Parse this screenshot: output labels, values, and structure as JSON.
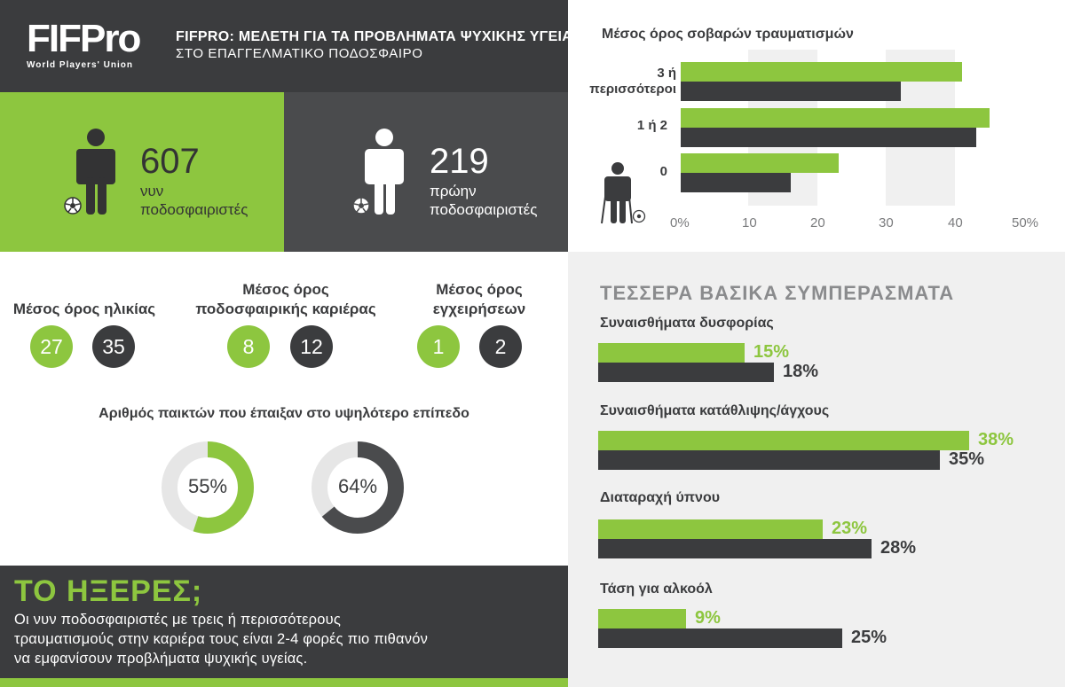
{
  "header": {
    "logo": "FIFPro",
    "logo_tagline": "World Players' Union",
    "title": "FIFPRO: ΜΕΛΕΤΗ ΓΙΑ ΤΑ ΠΡΟΒΛΗΜΑΤΑ ΨΥΧΙΚΗΣ ΥΓΕΙΑΣ",
    "subtitle": "ΣΤΟ ΕΠΑΓΓΕΛΜΑΤΙΚΟ ΠΟΔΟΣΦΑΙΡΟ"
  },
  "players": {
    "current": {
      "count": "607",
      "label1": "νυν",
      "label2": "ποδοσφαιριστές"
    },
    "former": {
      "count": "219",
      "label1": "πρώην",
      "label2": "ποδοσφαιριστές"
    }
  },
  "averages": {
    "age": {
      "title": "Μέσος όρος ηλικίας",
      "current": "27",
      "former": "35"
    },
    "career": {
      "title1": "Μέσος όρος",
      "title2": "ποδοσφαιρικής καριέρας",
      "current": "8",
      "former": "12"
    },
    "surgeries": {
      "title1": "Μέσος όρος",
      "title2": "εγχειρήσεων",
      "current": "1",
      "former": "2"
    }
  },
  "top_level": {
    "title": "Αριθμός παικτών που έπαιξαν στο υψηλότερο επίπεδο",
    "current_label": "55%",
    "former_label": "64%"
  },
  "did_you_know": {
    "title": "ΤΟ ΗΞΕΡΕΣ;",
    "line1": "Οι νυν ποδοσφαιριστές με τρεις ή περισσότερους",
    "line2": "τραυματισμούς στην καριέρα τους είναι 2-4 φορές πιο πιθανόν",
    "line3": "να εμφανίσουν προβλήματα ψυχικής υγείας."
  },
  "injuries": {
    "title": "Μέσος όρος σοβαρών τραυματισμών",
    "cat0_line1": "3 ή",
    "cat0_line2": "περισσότεροι",
    "cat1": "1 ή 2",
    "cat2": "0",
    "ticks": [
      "0%",
      "10",
      "20",
      "30",
      "40",
      "50%"
    ]
  },
  "conclusions": {
    "title": "ΤΕΣΣΕΡΑ ΒΑΣΙΚΑ ΣΥΜΠΕΡΑΣΜΑΤΑ",
    "items": [
      {
        "label": "Συναισθήματα δυσφορίας",
        "current": "15%",
        "former": "18%"
      },
      {
        "label": "Συναισθήματα κατάθλιψης/άγχους",
        "current": "38%",
        "former": "35%"
      },
      {
        "label": "Διαταραχή ύπνου",
        "current": "23%",
        "former": "28%"
      },
      {
        "label": "Τάση για αλκοόλ",
        "current": "9%",
        "former": "25%"
      }
    ]
  },
  "colors": {
    "current": "#8dc63f",
    "former": "#3b3c3e",
    "panel_dark": "#4a4b4d",
    "grid_band": "#f0f0f0"
  },
  "chart_data": [
    {
      "type": "pie",
      "title": "Αριθμός παικτών που έπαιξαν στο υψηλότερο επίπεδο",
      "series": [
        {
          "group": "current",
          "values": [
            55,
            45
          ],
          "label": "55%"
        },
        {
          "group": "former",
          "values": [
            64,
            36
          ],
          "label": "64%"
        }
      ]
    },
    {
      "type": "bar",
      "orientation": "horizontal",
      "title": "Μέσος όρος σοβαρών τραυματισμών",
      "categories": [
        "3 ή περισσότεροι",
        "1 ή 2",
        "0"
      ],
      "series": [
        {
          "group": "current",
          "values": [
            41,
            45,
            23
          ]
        },
        {
          "group": "former",
          "values": [
            32,
            43,
            16
          ]
        }
      ],
      "xlim": [
        0,
        50
      ],
      "xticks": [
        "0%",
        "10",
        "20",
        "30",
        "40",
        "50%"
      ],
      "grid": "alternating bands"
    },
    {
      "type": "bar",
      "orientation": "horizontal",
      "title": "ΤΕΣΣΕΡΑ ΒΑΣΙΚΑ ΣΥΜΠΕΡΑΣΜΑΤΑ",
      "categories": [
        "Συναισθήματα δυσφορίας",
        "Συναισθήματα κατάθλιψης/άγχους",
        "Διαταραχή ύπνου",
        "Τάση για αλκοόλ"
      ],
      "series": [
        {
          "group": "current",
          "values": [
            15,
            38,
            23,
            9
          ]
        },
        {
          "group": "former",
          "values": [
            18,
            35,
            28,
            25
          ]
        }
      ],
      "xlim": [
        0,
        38
      ]
    }
  ]
}
